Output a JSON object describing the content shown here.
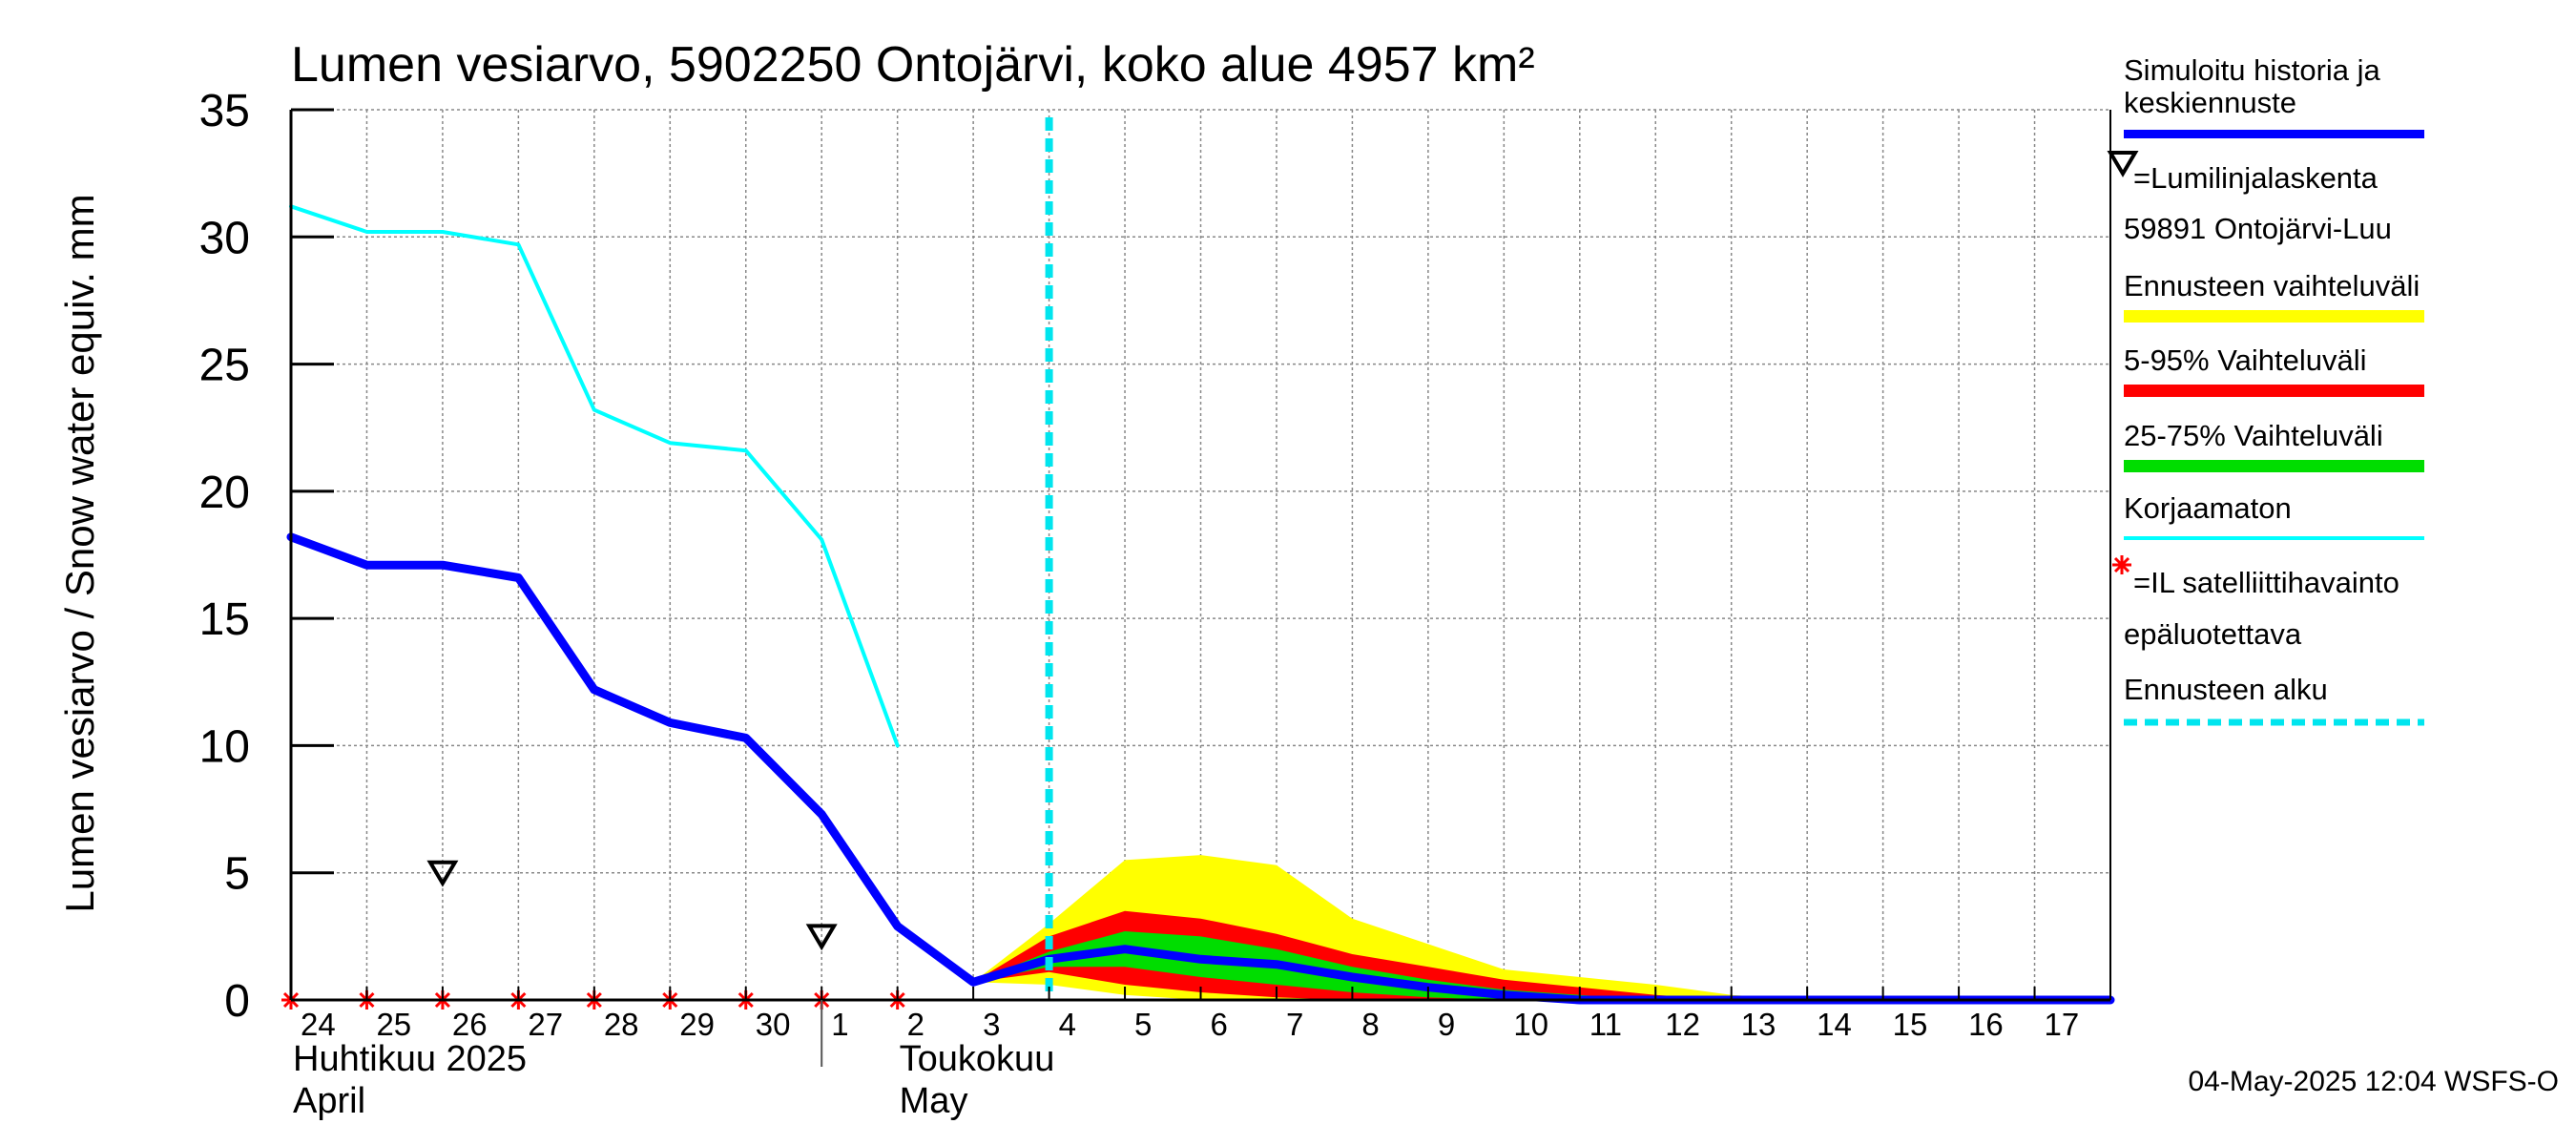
{
  "chart_data": {
    "type": "area",
    "title": "Lumen vesiarvo, 5902250 Ontojärvi, koko alue 4957 km²",
    "ylabel": "Lumen vesiarvo / Snow water equiv.    mm",
    "ylim": [
      0,
      35
    ],
    "yticks": [
      "0",
      "5",
      "10",
      "15",
      "20",
      "25",
      "30",
      "35"
    ],
    "x_range": [
      0,
      24
    ],
    "grid": true,
    "legend_position": "right",
    "x_tick_labels": [
      "24",
      "25",
      "26",
      "27",
      "28",
      "29",
      "30",
      "1",
      "2",
      "3",
      "4",
      "5",
      "6",
      "7",
      "8",
      "9",
      "10",
      "11",
      "12",
      "13",
      "14",
      "15",
      "16",
      "17"
    ],
    "month_labels": [
      {
        "fi": "Huhtikuu  2025",
        "en": "April",
        "x": 0
      },
      {
        "fi": "Toukokuu",
        "en": "May",
        "x": 8
      }
    ],
    "month_divider_x": 7,
    "forecast_start_x": 10,
    "series": [
      {
        "name": "Simuloitu historia ja keskiennuste",
        "color": "#0000ff",
        "kind": "line",
        "x": [
          0,
          1,
          2,
          3,
          4,
          5,
          6,
          7,
          8,
          9,
          10,
          11,
          12,
          13,
          14,
          15,
          16,
          17,
          18,
          19,
          20,
          21,
          22,
          23,
          24
        ],
        "y": [
          18.2,
          17.1,
          17.1,
          16.6,
          12.2,
          10.9,
          10.3,
          7.3,
          2.9,
          0.7,
          1.6,
          2.0,
          1.6,
          1.4,
          0.9,
          0.5,
          0.2,
          0.0,
          0.0,
          0.0,
          0.0,
          0.0,
          0.0,
          0.0,
          0.0
        ]
      },
      {
        "name": "Korjaamaton",
        "color": "#00ffff",
        "kind": "line",
        "x": [
          0,
          1,
          2,
          3,
          4,
          5,
          6,
          7,
          8
        ],
        "y": [
          31.2,
          30.2,
          30.2,
          29.7,
          23.2,
          21.9,
          21.6,
          18.1,
          10.0
        ]
      },
      {
        "name": "Ennusteen vaihteluväli",
        "color": "#ffff00",
        "kind": "band",
        "x": [
          9,
          10,
          11,
          12,
          13,
          14,
          15,
          16,
          17,
          18,
          19,
          20
        ],
        "lower": [
          0.7,
          0.6,
          0.2,
          0.0,
          0.0,
          0.0,
          0.0,
          0.0,
          0.0,
          0.0,
          0.0,
          0.0
        ],
        "upper": [
          0.7,
          3.0,
          5.5,
          5.7,
          5.3,
          3.2,
          2.2,
          1.2,
          0.9,
          0.6,
          0.2,
          0.0
        ]
      },
      {
        "name": "5-95% Vaihteluväli",
        "color": "#ff0000",
        "kind": "band",
        "x": [
          9,
          10,
          11,
          12,
          13,
          14,
          15,
          16,
          17,
          18,
          19,
          20
        ],
        "lower": [
          0.7,
          1.1,
          0.6,
          0.3,
          0.1,
          0.0,
          0.0,
          0.0,
          0.0,
          0.0,
          0.0,
          0.0
        ],
        "upper": [
          0.7,
          2.5,
          3.5,
          3.2,
          2.6,
          1.8,
          1.3,
          0.8,
          0.5,
          0.2,
          0.0,
          0.0
        ]
      },
      {
        "name": "25-75% Vaihteluväli",
        "color": "#00dd00",
        "kind": "band",
        "x": [
          9,
          10,
          11,
          12,
          13,
          14,
          15,
          16,
          17,
          18,
          19,
          20
        ],
        "lower": [
          0.7,
          1.3,
          1.3,
          0.9,
          0.6,
          0.3,
          0.1,
          0.0,
          0.0,
          0.0,
          0.0,
          0.0
        ],
        "upper": [
          0.7,
          1.9,
          2.7,
          2.5,
          2.0,
          1.3,
          0.8,
          0.4,
          0.2,
          0.0,
          0.0,
          0.0
        ]
      }
    ],
    "snow_line_markers": {
      "name": "=Lumilinjalaskenta 59891 Ontojärvi-Luu",
      "points": [
        {
          "x": 2,
          "y": 5.0
        },
        {
          "x": 7,
          "y": 2.5
        }
      ]
    },
    "satellite_markers": {
      "name": "=IL satelliittihavainto epäluotettava",
      "color": "#ff0000",
      "points": [
        {
          "x": 0,
          "y": 0
        },
        {
          "x": 1,
          "y": 0
        },
        {
          "x": 2,
          "y": 0
        },
        {
          "x": 3,
          "y": 0
        },
        {
          "x": 4,
          "y": 0
        },
        {
          "x": 5,
          "y": 0
        },
        {
          "x": 6,
          "y": 0
        },
        {
          "x": 7,
          "y": 0
        },
        {
          "x": 8,
          "y": 0
        }
      ]
    },
    "forecast_start_label": "Ennusteen alku",
    "footer": "04-May-2025 12:04 WSFS-O"
  },
  "legend": {
    "sim": "Simuloitu historia ja keskiennuste",
    "snowline_1": "=Lumilinjalaskenta",
    "snowline_2": "59891 Ontojärvi-Luu",
    "range": "Ennusteen vaihteluväli",
    "p595": "5-95% Vaihteluväli",
    "p2575": "25-75% Vaihteluväli",
    "uncorrected": "Korjaamaton",
    "sat_1": "=IL satelliittihavainto",
    "sat_2": "epäluotettava",
    "forecast_start": "Ennusteen alku"
  }
}
